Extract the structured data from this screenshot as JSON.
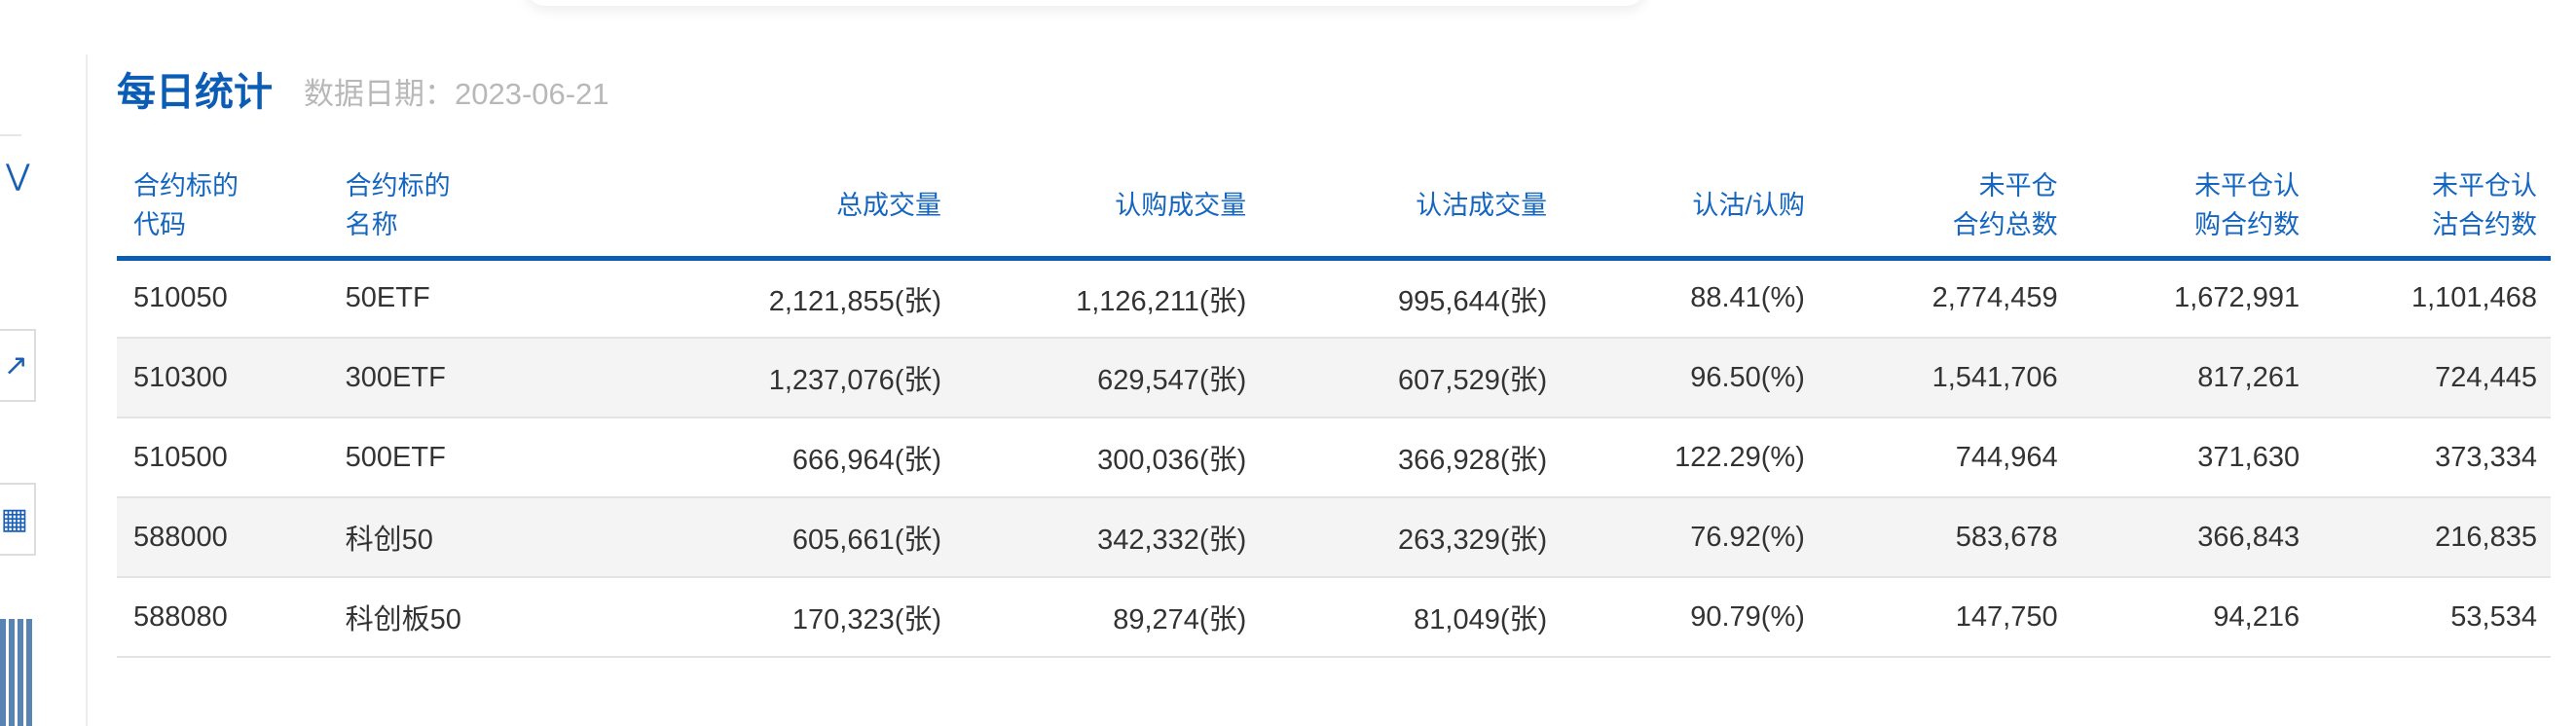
{
  "header": {
    "title": "每日统计",
    "date_label": "数据日期：2023-06-21"
  },
  "columns": [
    "合约标的\n代码",
    "合约标的\n名称",
    "总成交量",
    "认购成交量",
    "认沽成交量",
    "认沽/认购",
    "未平仓\n合约总数",
    "未平仓认\n购合约数",
    "未平仓认\n沽合约数"
  ],
  "rows": [
    [
      "510050",
      "50ETF",
      "2,121,855(张)",
      "1,126,211(张)",
      "995,644(张)",
      "88.41(%)",
      "2,774,459",
      "1,672,991",
      "1,101,468"
    ],
    [
      "510300",
      "300ETF",
      "1,237,076(张)",
      "629,547(张)",
      "607,529(张)",
      "96.50(%)",
      "1,541,706",
      "817,261",
      "724,445"
    ],
    [
      "510500",
      "500ETF",
      "666,964(张)",
      "300,036(张)",
      "366,928(张)",
      "122.29(%)",
      "744,964",
      "371,630",
      "373,334"
    ],
    [
      "588000",
      "科创50",
      "605,661(张)",
      "342,332(张)",
      "263,329(张)",
      "76.92(%)",
      "583,678",
      "366,843",
      "216,835"
    ],
    [
      "588080",
      "科创板50",
      "170,323(张)",
      "89,274(张)",
      "81,049(张)",
      "90.79(%)",
      "147,750",
      "94,216",
      "53,534"
    ]
  ],
  "colors": {
    "accent": "#0b5cb5",
    "header_text": "#1466c0",
    "muted": "#b8b8b8",
    "alt_row": "#f4f4f4"
  }
}
